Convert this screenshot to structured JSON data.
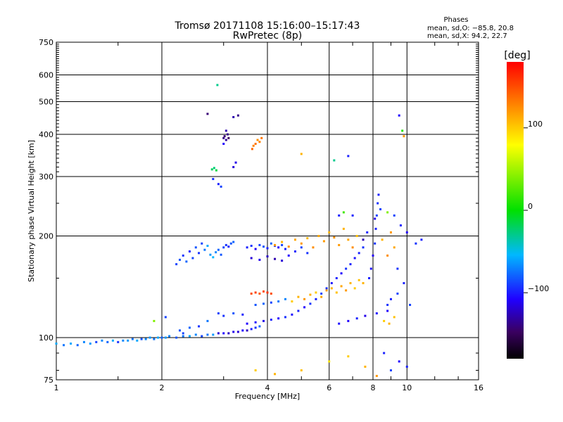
{
  "chart_data": {
    "type": "scatter",
    "title": "Tromsø 20171108 15:16:00–15:17:43",
    "subtitle": "RwPretec (8p)",
    "xlabel": "Frequency [MHz]",
    "ylabel": "Stationary phase Virtual Height [km]",
    "x_scale": "log",
    "y_scale": "log",
    "xlim": [
      1,
      16
    ],
    "ylim": [
      75,
      750
    ],
    "x_ticks": [
      "1",
      "2",
      "4",
      "6",
      "8",
      "10",
      "16"
    ],
    "x_tick_values": [
      1,
      2,
      4,
      6,
      8,
      10,
      16
    ],
    "y_ticks": [
      "75",
      "100",
      "200",
      "300",
      "400",
      "500",
      "600",
      "750"
    ],
    "y_tick_values": [
      75,
      100,
      200,
      300,
      400,
      500,
      600,
      750
    ],
    "grid": true,
    "stats": {
      "heading": "Phases",
      "line_o": "mean, sd,O: −85.8, 20.8",
      "line_x": "mean, sd,X:  94.2, 22.7"
    },
    "colorbar": {
      "label": "[deg]",
      "ticks": [
        "100",
        "0",
        "−100"
      ],
      "tick_values": [
        100,
        0,
        -100
      ],
      "range": [
        -180,
        180
      ],
      "colormap": "rainbow"
    },
    "series": [
      {
        "points": [
          [
            1.0,
            96,
            -60
          ],
          [
            1.05,
            95,
            -75
          ],
          [
            1.1,
            96,
            -60
          ],
          [
            1.15,
            95,
            -80
          ],
          [
            1.2,
            97,
            -70
          ],
          [
            1.25,
            96,
            -65
          ],
          [
            1.3,
            97,
            -90
          ],
          [
            1.35,
            98,
            -70
          ],
          [
            1.4,
            97,
            -80
          ],
          [
            1.45,
            98,
            -60
          ],
          [
            1.5,
            97,
            -95
          ],
          [
            1.55,
            98,
            -70
          ],
          [
            1.6,
            98,
            -65
          ],
          [
            1.65,
            99,
            -75
          ],
          [
            1.7,
            98,
            -60
          ],
          [
            1.75,
            99,
            -85
          ],
          [
            1.8,
            99,
            -70
          ],
          [
            1.85,
            100,
            -65
          ],
          [
            1.9,
            99,
            -75
          ],
          [
            1.95,
            100,
            -60
          ],
          [
            2.0,
            100,
            -80
          ],
          [
            2.05,
            100,
            -65
          ],
          [
            2.1,
            101,
            -70
          ],
          [
            2.2,
            100,
            -85
          ],
          [
            2.3,
            101,
            -75
          ],
          [
            2.4,
            101,
            -60
          ],
          [
            2.5,
            102,
            -70
          ],
          [
            2.6,
            101,
            -90
          ],
          [
            2.7,
            102,
            -75
          ],
          [
            2.8,
            102,
            -65
          ],
          [
            2.9,
            103,
            -120
          ],
          [
            3.0,
            103,
            -110
          ],
          [
            3.1,
            103,
            -125
          ],
          [
            3.2,
            104,
            -115
          ],
          [
            3.3,
            104,
            -120
          ],
          [
            3.4,
            105,
            -110
          ],
          [
            3.5,
            105,
            -125
          ],
          [
            3.6,
            106,
            -100
          ],
          [
            3.7,
            107,
            -95
          ],
          [
            3.8,
            108,
            -80
          ]
        ]
      },
      {
        "points": [
          [
            2.25,
            105,
            -85
          ],
          [
            2.3,
            103,
            -90
          ],
          [
            2.4,
            107,
            -80
          ],
          [
            2.55,
            108,
            -95
          ],
          [
            2.7,
            112,
            -75
          ],
          [
            2.9,
            118,
            -90
          ],
          [
            3.0,
            116,
            -95
          ],
          [
            3.2,
            118,
            -85
          ],
          [
            3.4,
            117,
            -100
          ],
          [
            1.9,
            112,
            40
          ],
          [
            2.05,
            115,
            -90
          ]
        ]
      },
      {
        "points": [
          [
            2.2,
            165,
            -90
          ],
          [
            2.25,
            170,
            -85
          ],
          [
            2.3,
            175,
            -95
          ],
          [
            2.35,
            168,
            -80
          ],
          [
            2.4,
            180,
            -100
          ],
          [
            2.45,
            172,
            -90
          ],
          [
            2.5,
            185,
            -85
          ],
          [
            2.55,
            178,
            -95
          ],
          [
            2.6,
            190,
            -90
          ],
          [
            2.65,
            182,
            -75
          ],
          [
            2.7,
            187,
            -60
          ],
          [
            2.75,
            176,
            -65
          ],
          [
            2.8,
            173,
            -55
          ],
          [
            2.85,
            179,
            -70
          ],
          [
            2.9,
            182,
            -80
          ],
          [
            2.95,
            176,
            -85
          ],
          [
            3.0,
            185,
            -90
          ],
          [
            3.05,
            188,
            -95
          ],
          [
            3.1,
            186,
            -100
          ],
          [
            3.15,
            190,
            -85
          ],
          [
            3.2,
            192,
            -80
          ]
        ]
      },
      {
        "points": [
          [
            3.5,
            185,
            -100
          ],
          [
            3.6,
            187,
            -95
          ],
          [
            3.7,
            183,
            -110
          ],
          [
            3.8,
            188,
            -90
          ],
          [
            3.9,
            186,
            -85
          ],
          [
            4.0,
            184,
            -100
          ],
          [
            4.1,
            190,
            -80
          ],
          [
            4.2,
            187,
            -95
          ],
          [
            4.3,
            185,
            -110
          ],
          [
            4.4,
            188,
            -90
          ],
          [
            4.5,
            183,
            -100
          ],
          [
            3.6,
            172,
            -120
          ],
          [
            3.8,
            170,
            -115
          ],
          [
            4.0,
            174,
            -125
          ],
          [
            4.2,
            171,
            -130
          ],
          [
            4.4,
            169,
            -120
          ],
          [
            4.6,
            175,
            -110
          ],
          [
            4.8,
            180,
            -100
          ],
          [
            5.0,
            185,
            -90
          ],
          [
            5.2,
            178,
            -95
          ]
        ]
      },
      {
        "points": [
          [
            4.2,
            188,
            120
          ],
          [
            4.4,
            192,
            110
          ],
          [
            4.6,
            186,
            125
          ],
          [
            4.8,
            195,
            115
          ],
          [
            5.0,
            190,
            120
          ],
          [
            5.2,
            197,
            110
          ],
          [
            5.4,
            185,
            125
          ],
          [
            5.6,
            200,
            115
          ],
          [
            5.8,
            193,
            120
          ],
          [
            6.0,
            205,
            110
          ],
          [
            6.2,
            198,
            125
          ],
          [
            6.4,
            188,
            120
          ],
          [
            6.6,
            210,
            110
          ],
          [
            6.8,
            195,
            115
          ],
          [
            7.0,
            185,
            125
          ],
          [
            7.2,
            200,
            105
          ],
          [
            8.5,
            195,
            110
          ],
          [
            9.0,
            205,
            120
          ],
          [
            9.2,
            185,
            115
          ],
          [
            8.8,
            175,
            125
          ]
        ]
      },
      {
        "points": [
          [
            3.6,
            135,
            150
          ],
          [
            3.7,
            136,
            155
          ],
          [
            3.8,
            135,
            145
          ],
          [
            3.9,
            137,
            150
          ],
          [
            4.0,
            136,
            160
          ],
          [
            4.1,
            135,
            150
          ],
          [
            3.7,
            125,
            -85
          ],
          [
            3.9,
            126,
            -80
          ],
          [
            4.1,
            127,
            -90
          ],
          [
            4.3,
            128,
            -75
          ],
          [
            4.5,
            130,
            -70
          ],
          [
            4.7,
            128,
            100
          ],
          [
            4.9,
            132,
            110
          ],
          [
            5.1,
            130,
            120
          ],
          [
            5.3,
            134,
            110
          ],
          [
            5.5,
            136,
            100
          ],
          [
            5.7,
            132,
            115
          ],
          [
            5.9,
            138,
            120
          ],
          [
            6.1,
            140,
            110
          ],
          [
            6.3,
            136,
            105
          ],
          [
            6.5,
            142,
            115
          ],
          [
            6.7,
            138,
            120
          ],
          [
            6.9,
            145,
            110
          ],
          [
            7.1,
            140,
            100
          ],
          [
            7.3,
            148,
            105
          ],
          [
            7.5,
            145,
            110
          ]
        ]
      },
      {
        "points": [
          [
            3.5,
            110,
            -110
          ],
          [
            3.7,
            111,
            -105
          ],
          [
            3.9,
            112,
            -115
          ],
          [
            4.1,
            113,
            -100
          ],
          [
            4.3,
            114,
            -110
          ],
          [
            4.5,
            115,
            -95
          ],
          [
            4.7,
            117,
            -105
          ],
          [
            4.9,
            120,
            -100
          ],
          [
            5.1,
            123,
            -110
          ],
          [
            5.3,
            126,
            -95
          ],
          [
            5.5,
            130,
            -100
          ],
          [
            5.7,
            135,
            -90
          ],
          [
            5.9,
            140,
            -95
          ],
          [
            6.1,
            145,
            -105
          ],
          [
            6.3,
            150,
            -100
          ],
          [
            6.5,
            155,
            -110
          ],
          [
            6.7,
            160,
            -95
          ],
          [
            6.9,
            165,
            -100
          ],
          [
            7.1,
            172,
            -105
          ],
          [
            7.3,
            178,
            -100
          ],
          [
            7.5,
            185,
            -95
          ]
        ]
      },
      {
        "points": [
          [
            6.4,
            110,
            -105
          ],
          [
            6.8,
            112,
            -110
          ],
          [
            7.2,
            114,
            -100
          ],
          [
            7.6,
            116,
            -115
          ],
          [
            8.2,
            118,
            -105
          ],
          [
            8.8,
            120,
            -110
          ],
          [
            8.6,
            112,
            100
          ],
          [
            8.9,
            110,
            110
          ],
          [
            9.2,
            115,
            105
          ],
          [
            8.8,
            125,
            -95
          ],
          [
            9.0,
            130,
            -100
          ],
          [
            9.4,
            135,
            -90
          ]
        ]
      },
      {
        "points": [
          [
            7.8,
            150,
            -100
          ],
          [
            7.9,
            160,
            -105
          ],
          [
            8.0,
            175,
            -110
          ],
          [
            8.1,
            190,
            -95
          ],
          [
            8.15,
            210,
            -100
          ],
          [
            8.2,
            230,
            -90
          ],
          [
            8.25,
            250,
            -95
          ],
          [
            8.3,
            265,
            -100
          ],
          [
            8.4,
            240,
            -90
          ],
          [
            8.1,
            225,
            -115
          ],
          [
            7.7,
            205,
            -100
          ],
          [
            7.5,
            195,
            -130
          ],
          [
            7.0,
            230,
            -100
          ],
          [
            6.6,
            235,
            20
          ],
          [
            6.4,
            230,
            -100
          ],
          [
            8.8,
            235,
            40
          ],
          [
            9.2,
            230,
            -90
          ],
          [
            9.6,
            215,
            -100
          ],
          [
            10.0,
            205,
            -110
          ],
          [
            9.4,
            160,
            -95
          ],
          [
            9.8,
            145,
            -100
          ],
          [
            10.2,
            125,
            -90
          ],
          [
            10.6,
            190,
            -95
          ],
          [
            11.0,
            195,
            -100
          ]
        ]
      },
      {
        "points": [
          [
            2.78,
            315,
            -20
          ],
          [
            2.82,
            318,
            -25
          ],
          [
            2.86,
            313,
            -15
          ],
          [
            2.8,
            295,
            -95
          ],
          [
            2.9,
            285,
            -100
          ],
          [
            2.95,
            280,
            -90
          ],
          [
            3.0,
            390,
            -140
          ],
          [
            3.02,
            395,
            -145
          ],
          [
            3.05,
            385,
            -135
          ],
          [
            3.08,
            400,
            -140
          ],
          [
            3.1,
            390,
            -150
          ],
          [
            3.0,
            375,
            -110
          ],
          [
            3.05,
            410,
            -130
          ],
          [
            3.2,
            320,
            -120
          ],
          [
            3.25,
            330,
            -115
          ],
          [
            3.3,
            455,
            -140
          ],
          [
            3.2,
            450,
            -130
          ],
          [
            2.7,
            460,
            -145
          ],
          [
            2.88,
            560,
            -30
          ]
        ]
      },
      {
        "points": [
          [
            3.65,
            370,
            130
          ],
          [
            3.7,
            375,
            135
          ],
          [
            3.75,
            385,
            125
          ],
          [
            3.8,
            380,
            130
          ],
          [
            3.85,
            390,
            135
          ],
          [
            3.62,
            362,
            140
          ],
          [
            9.5,
            455,
            -110
          ],
          [
            9.7,
            410,
            10
          ],
          [
            9.8,
            395,
            120
          ],
          [
            5.0,
            350,
            110
          ],
          [
            6.2,
            335,
            -30
          ],
          [
            6.8,
            345,
            -100
          ]
        ]
      },
      {
        "points": [
          [
            3.7,
            80,
            100
          ],
          [
            4.2,
            78,
            110
          ],
          [
            5.0,
            80,
            105
          ],
          [
            6.0,
            85,
            90
          ],
          [
            6.8,
            88,
            100
          ],
          [
            7.6,
            82,
            110
          ],
          [
            8.2,
            77,
            120
          ],
          [
            8.6,
            90,
            -100
          ],
          [
            9.0,
            80,
            -90
          ],
          [
            9.5,
            85,
            -110
          ],
          [
            10.0,
            82,
            -100
          ]
        ]
      }
    ]
  }
}
